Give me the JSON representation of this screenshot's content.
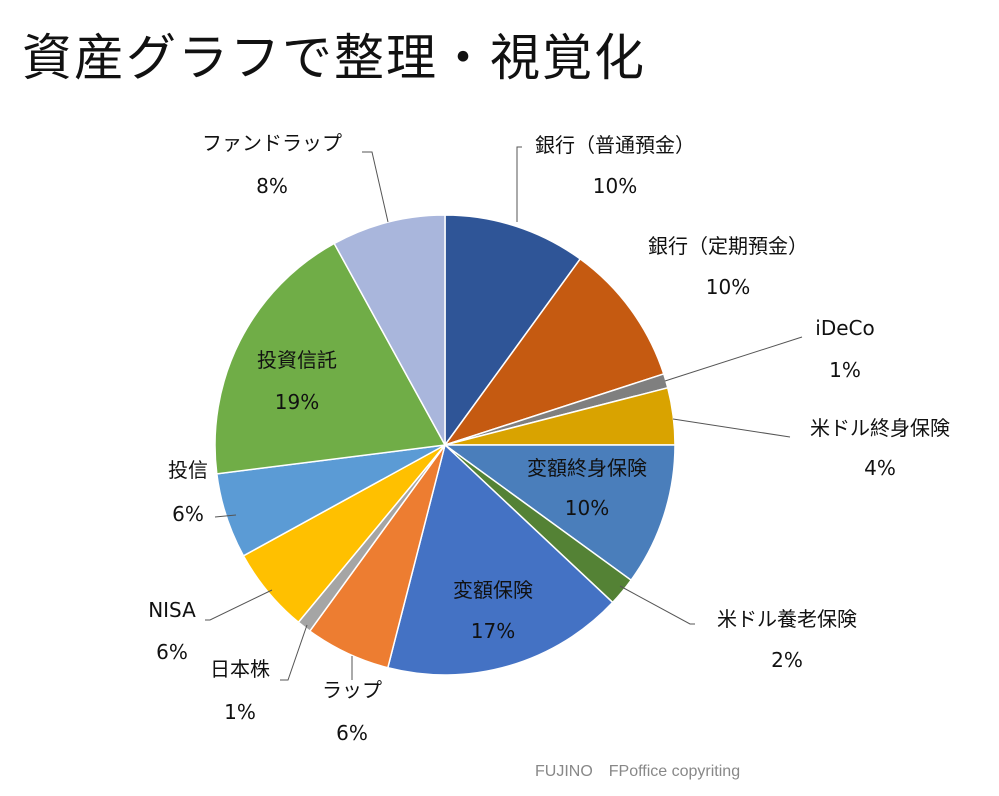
{
  "title": "資産グラフで整理・視覚化",
  "footer": "FUJINO　FPoffice copyriting",
  "chart_data": {
    "type": "pie",
    "title": "資産グラフで整理・視覚化",
    "start": "top, clockwise",
    "slices": [
      {
        "label": "銀行（普通預金）",
        "value": 10,
        "pct": "10%",
        "color": "#2F5597"
      },
      {
        "label": "銀行（定期預金）",
        "value": 10,
        "pct": "10%",
        "color": "#C55A11"
      },
      {
        "label": "iDeCo",
        "value": 1,
        "pct": "1%",
        "color": "#7F7F7F"
      },
      {
        "label": "米ドル終身保険",
        "value": 4,
        "pct": "4%",
        "color": "#D9A300"
      },
      {
        "label": "変額終身保険",
        "value": 10,
        "pct": "10%",
        "color": "#4A7EBB"
      },
      {
        "label": "米ドル養老保険",
        "value": 2,
        "pct": "2%",
        "color": "#548235"
      },
      {
        "label": "変額保険",
        "value": 17,
        "pct": "17%",
        "color": "#4472C4"
      },
      {
        "label": "ラップ",
        "value": 6,
        "pct": "6%",
        "color": "#ED7D31"
      },
      {
        "label": "日本株",
        "value": 1,
        "pct": "1%",
        "color": "#A5A5A5"
      },
      {
        "label": "NISA",
        "value": 6,
        "pct": "6%",
        "color": "#FFC000"
      },
      {
        "label": "投信",
        "value": 6,
        "pct": "6%",
        "color": "#5B9BD5"
      },
      {
        "label": "投資信託",
        "value": 19,
        "pct": "19%",
        "color": "#70AD47"
      },
      {
        "label": "ファンドラップ",
        "value": 8,
        "pct": "8%",
        "color": "#A9B6DC"
      }
    ]
  }
}
